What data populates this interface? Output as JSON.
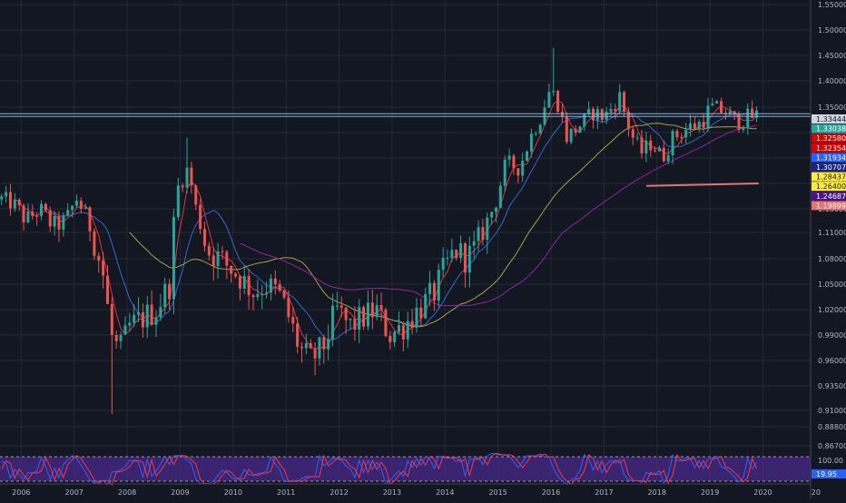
{
  "chart_data": {
    "type": "candlestick",
    "timeframe_note": "monthly",
    "x_range": [
      2005.6,
      2020.9
    ],
    "ylim": [
      0.85,
      1.56
    ],
    "y_ticks": [
      1.55,
      1.5,
      1.45,
      1.4,
      1.35,
      1.3,
      1.25,
      1.2,
      1.15,
      1.11,
      1.08,
      1.05,
      1.02,
      0.99,
      0.96,
      0.935,
      0.91,
      0.888,
      0.867
    ],
    "y_tick_labels": [
      "1.55000",
      "1.50000",
      "1.45000",
      "1.40000",
      "1.35000",
      "1.30000",
      "1.25000",
      "1.20000",
      "1.15000",
      "1.11000",
      "1.08000",
      "1.05000",
      "1.02000",
      "0.99000",
      "0.96000",
      "0.93500",
      "0.91000",
      "0.88800",
      "0.86700"
    ],
    "x_ticks": [
      "2006",
      "2007",
      "2008",
      "2009",
      "2010",
      "2011",
      "2012",
      "2013",
      "2014",
      "2015",
      "2016",
      "2017",
      "2018",
      "2019",
      "2020",
      "20"
    ],
    "x_tick_positions": [
      2006,
      2007,
      2008,
      2009,
      2010,
      2011,
      2012,
      2013,
      2014,
      2015,
      2016,
      2017,
      2018,
      2019,
      2020,
      2021
    ],
    "grid": true,
    "price_anchors": [
      [
        2005.6,
        1.17
      ],
      [
        2005.85,
        1.16
      ],
      [
        2006.1,
        1.13
      ],
      [
        2006.35,
        1.15
      ],
      [
        2006.6,
        1.12
      ],
      [
        2006.85,
        1.13
      ],
      [
        2007.05,
        1.17
      ],
      [
        2007.3,
        1.12
      ],
      [
        2007.55,
        1.06
      ],
      [
        2007.7,
        0.99
      ],
      [
        2007.85,
        0.97
      ],
      [
        2008.05,
        1.0
      ],
      [
        2008.3,
        1.01
      ],
      [
        2008.55,
        1.02
      ],
      [
        2008.8,
        1.05
      ],
      [
        2008.95,
        1.19
      ],
      [
        2009.15,
        1.23
      ],
      [
        2009.3,
        1.15
      ],
      [
        2009.5,
        1.09
      ],
      [
        2009.75,
        1.08
      ],
      [
        2010.1,
        1.06
      ],
      [
        2010.4,
        1.04
      ],
      [
        2010.6,
        1.05
      ],
      [
        2010.85,
        1.04
      ],
      [
        2011.0,
        1.02
      ],
      [
        2011.25,
        0.975
      ],
      [
        2011.45,
        0.96
      ],
      [
        2011.7,
        0.975
      ],
      [
        2011.95,
        1.02
      ],
      [
        2012.2,
        1.0
      ],
      [
        2012.45,
        1.01
      ],
      [
        2012.7,
        1.02
      ],
      [
        2012.95,
        0.99
      ],
      [
        2013.2,
        1.0
      ],
      [
        2013.5,
        1.02
      ],
      [
        2013.8,
        1.04
      ],
      [
        2014.0,
        1.07
      ],
      [
        2014.2,
        1.09
      ],
      [
        2014.4,
        1.08
      ],
      [
        2014.55,
        1.09
      ],
      [
        2014.75,
        1.12
      ],
      [
        2014.95,
        1.16
      ],
      [
        2015.15,
        1.24
      ],
      [
        2015.4,
        1.23
      ],
      [
        2015.65,
        1.3
      ],
      [
        2015.8,
        1.33
      ],
      [
        2015.95,
        1.38
      ],
      [
        2016.1,
        1.37
      ],
      [
        2016.3,
        1.29
      ],
      [
        2016.5,
        1.31
      ],
      [
        2016.8,
        1.34
      ],
      [
        2017.0,
        1.33
      ],
      [
        2017.3,
        1.37
      ],
      [
        2017.5,
        1.3
      ],
      [
        2017.7,
        1.26
      ],
      [
        2017.9,
        1.28
      ],
      [
        2018.1,
        1.25
      ],
      [
        2018.3,
        1.29
      ],
      [
        2018.6,
        1.31
      ],
      [
        2018.85,
        1.32
      ],
      [
        2019.0,
        1.35
      ],
      [
        2019.3,
        1.34
      ],
      [
        2019.5,
        1.32
      ],
      [
        2019.7,
        1.33
      ],
      [
        2019.9,
        1.334
      ]
    ],
    "moving_averages": [
      {
        "color": "#f23645",
        "period_note": "fast MA"
      },
      {
        "color": "#3a6fd8",
        "period_note": "medium MA"
      },
      {
        "color": "#b8ad4a",
        "period_note": "slow MA"
      },
      {
        "color": "#9c27b0",
        "period_note": "long MA"
      }
    ],
    "horizontal_line_price": 1.33444,
    "price_labels": [
      {
        "text": "1.33444",
        "price": 1.33444,
        "bg": "#d1d4dc",
        "fg": "#131722"
      },
      {
        "text": "1.33038",
        "price": 1.33038,
        "bg": "#26a69a",
        "fg": "#ffffff"
      },
      {
        "text": "1.32580",
        "price": 1.3258,
        "bg": "#d50000",
        "fg": "#ffffff"
      },
      {
        "text": "1.32354",
        "price": 1.32354,
        "bg": "#d50000",
        "fg": "#ffffff"
      },
      {
        "text": "1.31934",
        "price": 1.31934,
        "bg": "#2962ff",
        "fg": "#ffffff"
      },
      {
        "text": "1.30707",
        "price": 1.30707,
        "bg": "#1a237e",
        "fg": "#ffffff"
      },
      {
        "text": "1.28437",
        "price": 1.28437,
        "bg": "#ffeb3b",
        "fg": "#131722"
      },
      {
        "text": "1.26400",
        "price": 1.264,
        "bg": "#ffeb3b",
        "fg": "#131722"
      },
      {
        "text": "1.24687",
        "price": 1.24687,
        "bg": "#4a148c",
        "fg": "#ffffff"
      },
      {
        "text": "1.19899",
        "price": 1.19899,
        "bg": "#e57373",
        "fg": "#ffffff"
      }
    ],
    "oscillator": {
      "ticks": [
        "100.00",
        "19.95"
      ],
      "fill_color": "#4a2a8a",
      "line_colors": [
        "#2962ff",
        "#f23645"
      ]
    }
  }
}
